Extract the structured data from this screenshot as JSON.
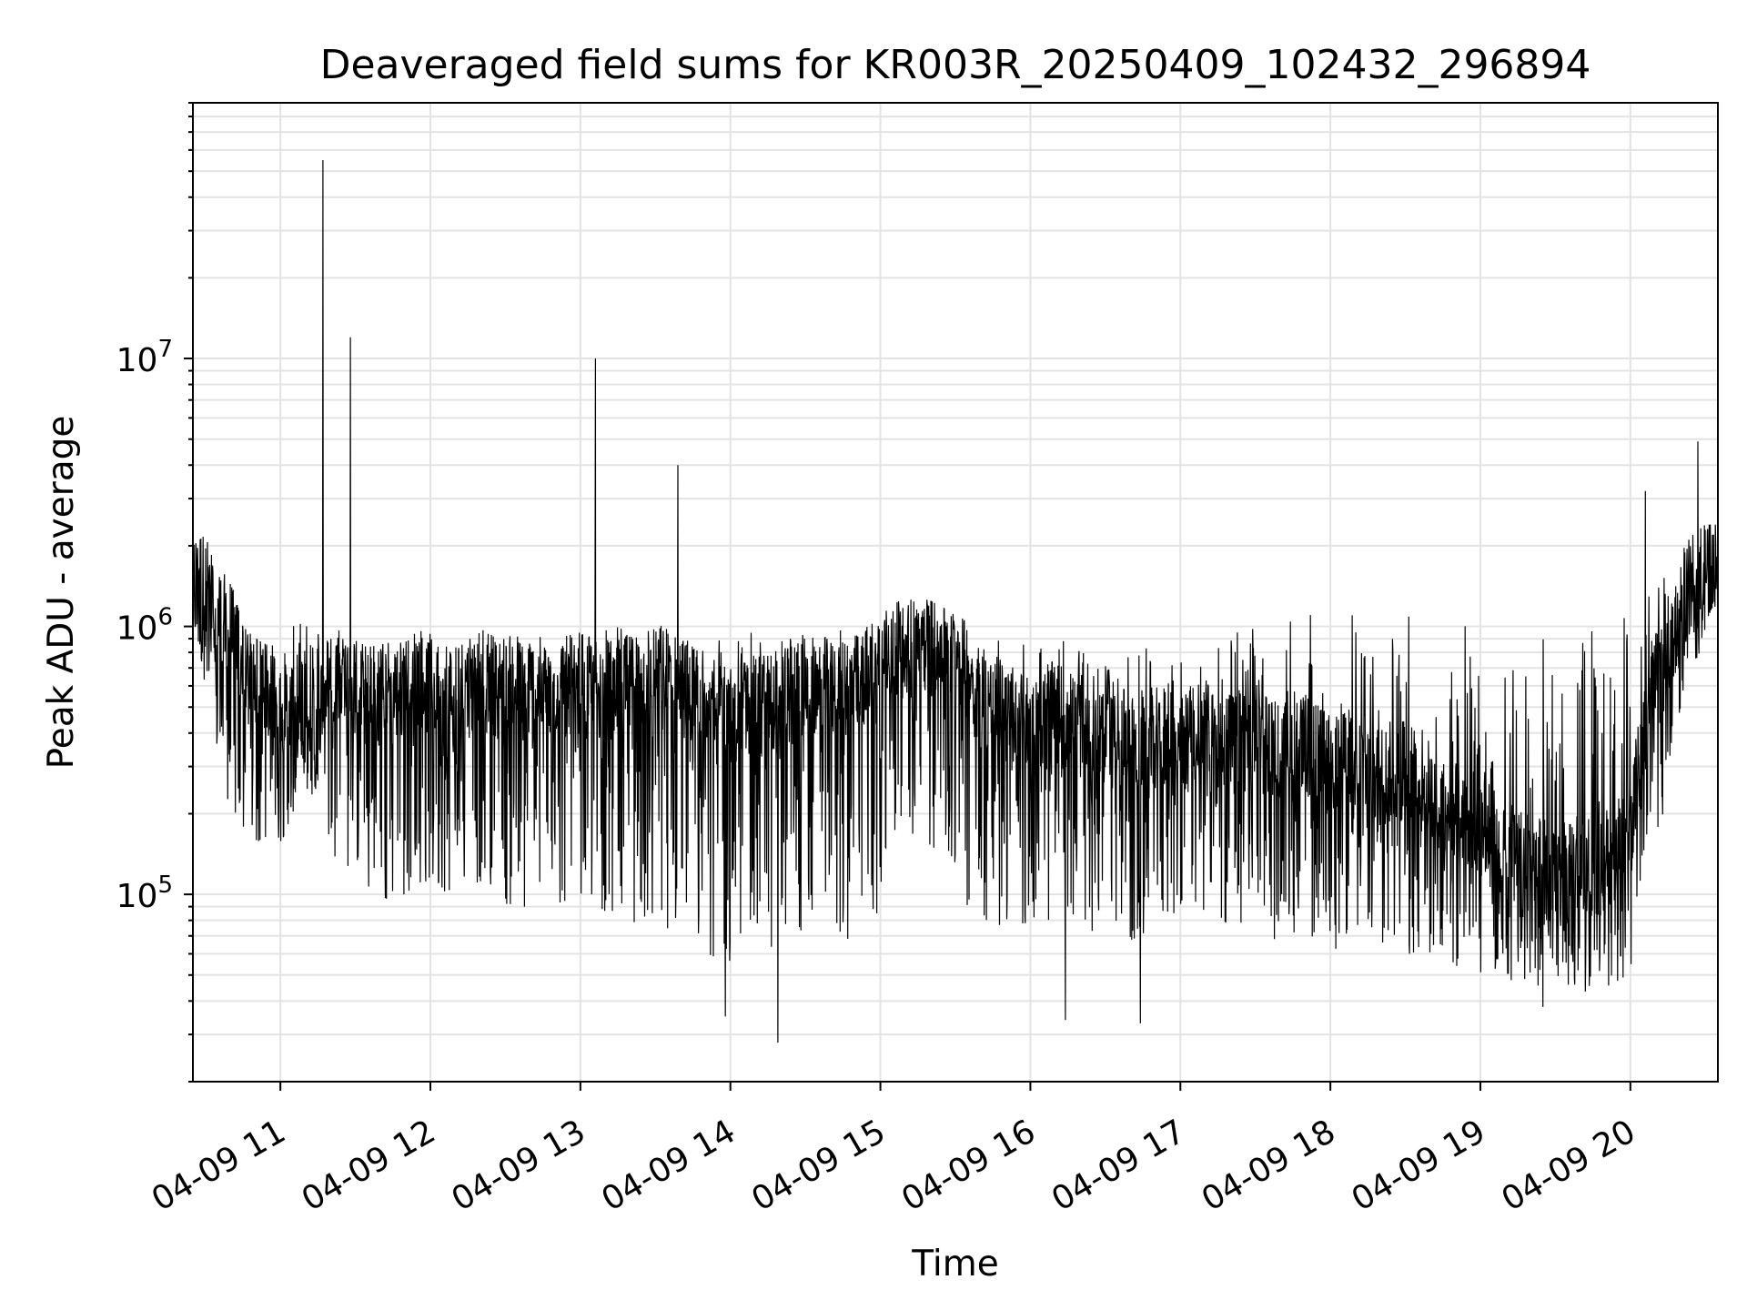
{
  "chart_data": {
    "type": "line",
    "title": "Deaveraged field sums for KR003R_20250409_102432_296894",
    "xlabel": "Time",
    "ylabel": "Peak ADU - average",
    "x_scale": "time",
    "y_scale": "log",
    "xlim": [
      "04-09 10:25",
      "04-09 20:35"
    ],
    "ylim": [
      20000,
      90000000
    ],
    "grid": true,
    "line_color": "#000000",
    "x_tick_labels": [
      "04-09 11",
      "04-09 12",
      "04-09 13",
      "04-09 14",
      "04-09 15",
      "04-09 16",
      "04-09 17",
      "04-09 18",
      "04-09 19",
      "04-09 20"
    ],
    "y_tick_labels": [
      {
        "base": "10",
        "exp": "5",
        "value": 100000
      },
      {
        "base": "10",
        "exp": "6",
        "value": 1000000
      },
      {
        "base": "10",
        "exp": "7",
        "value": 10000000
      }
    ],
    "series": [
      {
        "x": [
          "04-09 10:25",
          "04-09 10:30",
          "04-09 10:35",
          "04-09 10:40",
          "04-09 10:45",
          "04-09 10:50",
          "04-09 10:55",
          "04-09 11:00",
          "04-09 11:05",
          "04-09 11:10",
          "04-09 11:15",
          "04-09 11:20",
          "04-09 11:25",
          "04-09 11:30",
          "04-09 11:35",
          "04-09 11:40",
          "04-09 11:45",
          "04-09 11:50",
          "04-09 11:55",
          "04-09 12:00",
          "04-09 12:10",
          "04-09 12:20",
          "04-09 12:30",
          "04-09 12:40",
          "04-09 12:50",
          "04-09 13:00",
          "04-09 13:05",
          "04-09 13:10",
          "04-09 13:20",
          "04-09 13:30",
          "04-09 13:40",
          "04-09 13:45",
          "04-09 13:50",
          "04-09 14:00",
          "04-09 14:10",
          "04-09 14:20",
          "04-09 14:30",
          "04-09 14:40",
          "04-09 14:50",
          "04-09 15:00",
          "04-09 15:10",
          "04-09 15:20",
          "04-09 15:30",
          "04-09 15:40",
          "04-09 15:50",
          "04-09 16:00",
          "04-09 16:10",
          "04-09 16:20",
          "04-09 16:30",
          "04-09 16:40",
          "04-09 16:50",
          "04-09 17:00",
          "04-09 17:10",
          "04-09 17:20",
          "04-09 17:30",
          "04-09 17:40",
          "04-09 17:50",
          "04-09 18:00",
          "04-09 18:10",
          "04-09 18:20",
          "04-09 18:30",
          "04-09 18:40",
          "04-09 18:50",
          "04-09 19:00",
          "04-09 19:10",
          "04-09 19:20",
          "04-09 19:30",
          "04-09 19:40",
          "04-09 19:50",
          "04-09 20:00",
          "04-09 20:05",
          "04-09 20:10",
          "04-09 20:15",
          "04-09 20:20",
          "04-09 20:25",
          "04-09 20:30",
          "04-09 20:35"
        ],
        "values": [
          1500000,
          1200000,
          900000,
          800000,
          700000,
          600000,
          500000,
          450000,
          400000,
          350000,
          400000,
          550000,
          600000,
          500000,
          450000,
          500000,
          450000,
          500000,
          550000,
          500000,
          480000,
          520000,
          500000,
          480000,
          500000,
          520000,
          500000,
          480000,
          500000,
          520000,
          500000,
          450000,
          480000,
          400000,
          420000,
          450000,
          500000,
          480000,
          500000,
          600000,
          800000,
          750000,
          700000,
          450000,
          400000,
          350000,
          400000,
          350000,
          380000,
          300000,
          320000,
          300000,
          350000,
          300000,
          350000,
          280000,
          300000,
          250000,
          280000,
          230000,
          250000,
          200000,
          180000,
          150000,
          120000,
          110000,
          100000,
          100000,
          110000,
          150000,
          300000,
          500000,
          700000,
          900000,
          1200000,
          1400000,
          1500000
        ],
        "low": [
          1000000,
          600000,
          300000,
          200000,
          150000,
          150000,
          120000,
          150000,
          200000,
          250000,
          200000,
          150000,
          120000,
          130000,
          100000,
          80000,
          90000,
          100000,
          110000,
          100000,
          100000,
          110000,
          90000,
          80000,
          85000,
          100000,
          90000,
          80000,
          80000,
          70000,
          75000,
          70000,
          60000,
          55000,
          60000,
          65000,
          70000,
          75000,
          60000,
          90000,
          150000,
          150000,
          100000,
          80000,
          70000,
          70000,
          80000,
          75000,
          70000,
          65000,
          70000,
          75000,
          80000,
          70000,
          75000,
          65000,
          70000,
          60000,
          70000,
          65000,
          60000,
          55000,
          52000,
          50000,
          48000,
          45000,
          42000,
          42000,
          45000,
          50000,
          80000,
          120000,
          250000,
          450000,
          700000,
          900000,
          1100000
        ],
        "high": [
          2000000,
          2200000,
          2000000,
          1500000,
          1000000,
          900000,
          850000,
          900000,
          1000000,
          1100000,
          1100000,
          1000000,
          950000,
          900000,
          950000,
          900000,
          900000,
          950000,
          1000000,
          950000,
          950000,
          1000000,
          950000,
          950000,
          900000,
          950000,
          950000,
          1000000,
          1000000,
          1050000,
          950000,
          900000,
          950000,
          950000,
          950000,
          950000,
          950000,
          950000,
          1000000,
          1100000,
          1300000,
          1250000,
          1100000,
          1000000,
          900000,
          850000,
          900000,
          950000,
          900000,
          850000,
          900000,
          900000,
          950000,
          950000,
          1000000,
          1100000,
          1100000,
          1150000,
          1150000,
          1200000,
          1150000,
          1100000,
          1050000,
          1000000,
          950000,
          950000,
          900000,
          950000,
          1000000,
          1200000,
          1400000,
          1600000,
          1800000,
          2000000,
          2200000,
          2400000,
          2400000
        ],
        "spikes": [
          {
            "x": "04-09 11:17",
            "y": 55000000
          },
          {
            "x": "04-09 11:28",
            "y": 12000000
          },
          {
            "x": "04-09 13:06",
            "y": 10000000
          },
          {
            "x": "04-09 13:39",
            "y": 4000000
          },
          {
            "x": "04-09 20:06",
            "y": 3200000
          },
          {
            "x": "04-09 20:27",
            "y": 4900000
          },
          {
            "x": "04-09 14:19",
            "y": 28000
          },
          {
            "x": "04-09 13:58",
            "y": 35000
          },
          {
            "x": "04-09 16:14",
            "y": 34000
          },
          {
            "x": "04-09 16:44",
            "y": 33000
          },
          {
            "x": "04-09 19:25",
            "y": 38000
          }
        ]
      }
    ]
  }
}
